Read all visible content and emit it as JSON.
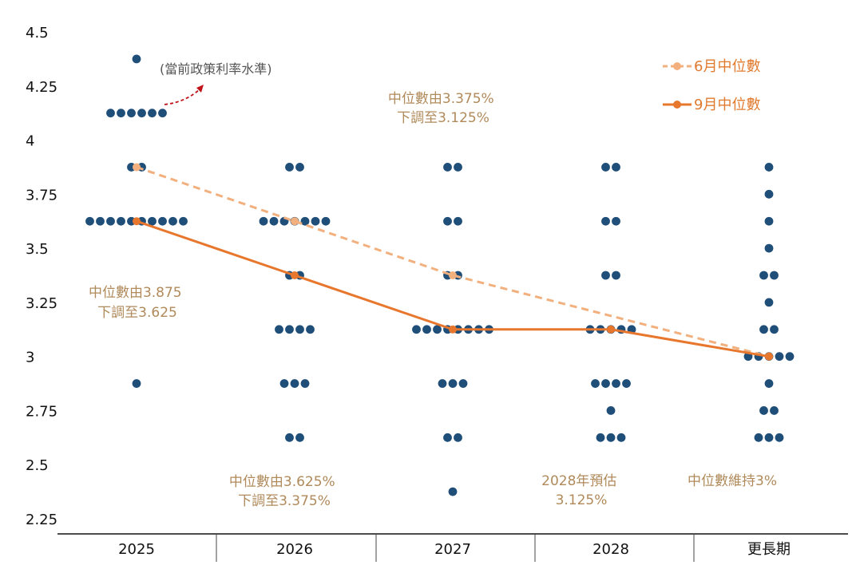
{
  "colors": {
    "dot": "#1f4e79",
    "june": "#f2b07e",
    "sept": "#e8772e",
    "arrow": "#c0141b",
    "annotation": "#b08a5a",
    "axis": "#111111"
  },
  "chart_data": {
    "type": "scatter",
    "title": "",
    "xlabel": "",
    "ylabel": "",
    "ylim": [
      2.25,
      4.5
    ],
    "y_ticks": [
      "2.25",
      "2.5",
      "2.75",
      "3",
      "3.25",
      "3.5",
      "3.75",
      "4",
      "4.25",
      "4.5"
    ],
    "y_tick_values": [
      2.25,
      2.5,
      2.75,
      3,
      3.25,
      3.5,
      3.75,
      4,
      4.25,
      4.5
    ],
    "categories": [
      "2025",
      "2026",
      "2027",
      "2028",
      "更長期"
    ],
    "dots": [
      {
        "category": "2025",
        "levels": [
          {
            "rate": 4.375,
            "count": 1
          },
          {
            "rate": 4.125,
            "count": 6
          },
          {
            "rate": 3.875,
            "count": 2
          },
          {
            "rate": 3.625,
            "count": 10
          },
          {
            "rate": 2.875,
            "count": 1
          }
        ]
      },
      {
        "category": "2026",
        "levels": [
          {
            "rate": 3.875,
            "count": 2
          },
          {
            "rate": 3.625,
            "count": 7
          },
          {
            "rate": 3.375,
            "count": 2
          },
          {
            "rate": 3.125,
            "count": 4
          },
          {
            "rate": 2.875,
            "count": 3
          },
          {
            "rate": 2.625,
            "count": 2
          }
        ]
      },
      {
        "category": "2027",
        "levels": [
          {
            "rate": 3.875,
            "count": 2
          },
          {
            "rate": 3.625,
            "count": 2
          },
          {
            "rate": 3.375,
            "count": 2
          },
          {
            "rate": 3.125,
            "count": 8
          },
          {
            "rate": 2.875,
            "count": 3
          },
          {
            "rate": 2.625,
            "count": 2
          },
          {
            "rate": 2.375,
            "count": 1
          }
        ]
      },
      {
        "category": "2028",
        "levels": [
          {
            "rate": 3.875,
            "count": 2
          },
          {
            "rate": 3.625,
            "count": 2
          },
          {
            "rate": 3.375,
            "count": 2
          },
          {
            "rate": 3.125,
            "count": 5
          },
          {
            "rate": 2.875,
            "count": 4
          },
          {
            "rate": 2.75,
            "count": 1
          },
          {
            "rate": 2.625,
            "count": 3
          }
        ]
      },
      {
        "category": "更長期",
        "levels": [
          {
            "rate": 3.875,
            "count": 1
          },
          {
            "rate": 3.75,
            "count": 1
          },
          {
            "rate": 3.625,
            "count": 1
          },
          {
            "rate": 3.5,
            "count": 1
          },
          {
            "rate": 3.375,
            "count": 2
          },
          {
            "rate": 3.25,
            "count": 1
          },
          {
            "rate": 3.125,
            "count": 2
          },
          {
            "rate": 3.0,
            "count": 5
          },
          {
            "rate": 2.875,
            "count": 1
          },
          {
            "rate": 2.75,
            "count": 2
          },
          {
            "rate": 2.625,
            "count": 3
          }
        ]
      }
    ],
    "series": [
      {
        "name": "6月中位數",
        "style": "dashed",
        "values": [
          3.875,
          3.625,
          3.375,
          null,
          3.0
        ]
      },
      {
        "name": "9月中位數",
        "style": "solid",
        "values": [
          3.625,
          3.375,
          3.125,
          3.125,
          3.0
        ]
      }
    ],
    "annotations": {
      "current_rate_note": "(當前政策利率水準)",
      "a2025": [
        "中位數由3.875",
        "下調至3.625"
      ],
      "a2026": [
        "中位數由3.625%",
        "下調至3.375%"
      ],
      "a2027": [
        "中位數由3.375%",
        "下調至3.125%"
      ],
      "a2028": [
        "2028年預估",
        "3.125%"
      ],
      "along": "中位數維持3%"
    }
  }
}
